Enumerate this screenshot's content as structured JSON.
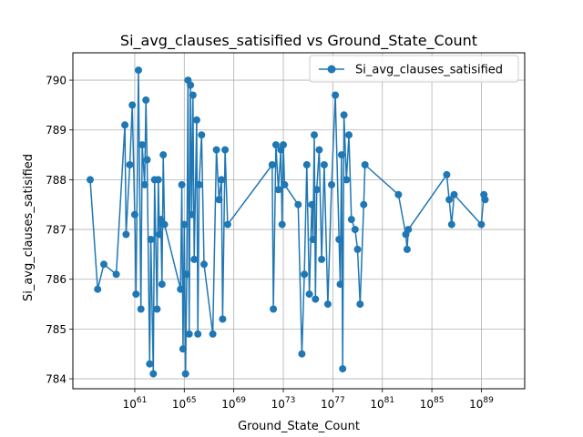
{
  "chart_data": {
    "type": "line",
    "title": "Si_avg_clauses_satisified vs Ground_State_Count",
    "xlabel": "Ground_State_Count",
    "ylabel": "Si_avg_clauses_satisified",
    "x_scale": "log10",
    "x_exponent_range": [
      56.0,
      92.5
    ],
    "xtick_exponents": [
      61,
      65,
      69,
      73,
      77,
      81,
      85,
      89
    ],
    "ylim": [
      783.8,
      790.55
    ],
    "yticks": [
      784,
      785,
      786,
      787,
      788,
      789,
      790
    ],
    "grid": true,
    "legend_position": "top-right",
    "color": "#1f77b4",
    "series": [
      {
        "name": "Si_avg_clauses_satisified",
        "x_exponent": [
          57.4,
          58.0,
          58.5,
          59.5,
          60.2,
          60.3,
          60.6,
          60.8,
          61.0,
          61.1,
          61.3,
          61.5,
          61.6,
          61.8,
          61.9,
          62.0,
          62.2,
          62.3,
          62.5,
          62.6,
          62.8,
          62.9,
          63.0,
          63.1,
          63.2,
          63.3,
          63.4,
          64.7,
          64.8,
          64.9,
          65.0,
          65.1,
          65.2,
          65.3,
          65.4,
          65.5,
          65.6,
          65.7,
          65.8,
          66.0,
          66.1,
          66.2,
          66.4,
          66.6,
          67.3,
          67.6,
          67.8,
          68.0,
          68.1,
          68.3,
          68.5,
          72.1,
          72.2,
          72.4,
          72.6,
          72.8,
          72.9,
          73.0,
          73.1,
          74.2,
          74.5,
          74.7,
          74.9,
          75.1,
          75.3,
          75.4,
          75.5,
          75.6,
          75.7,
          75.9,
          76.1,
          76.3,
          76.6,
          76.9,
          77.2,
          77.5,
          77.6,
          77.7,
          77.8,
          77.9,
          78.1,
          78.3,
          78.5,
          78.8,
          79.0,
          79.2,
          79.5,
          79.6,
          82.3,
          82.9,
          83.0,
          83.1,
          86.2,
          86.4,
          86.6,
          86.8,
          89.0,
          89.2,
          89.3
        ],
        "values": [
          788.0,
          785.8,
          786.3,
          786.1,
          789.1,
          786.9,
          788.3,
          789.5,
          787.3,
          785.7,
          790.2,
          785.4,
          788.7,
          787.9,
          789.6,
          788.4,
          784.3,
          786.8,
          784.1,
          788.0,
          785.4,
          788.0,
          786.9,
          787.2,
          785.9,
          788.5,
          787.1,
          785.8,
          787.9,
          784.6,
          787.1,
          784.1,
          786.1,
          790.0,
          784.9,
          789.9,
          787.3,
          789.7,
          786.4,
          789.2,
          784.9,
          787.9,
          788.9,
          786.3,
          784.9,
          788.6,
          787.6,
          788.0,
          785.2,
          788.6,
          787.1,
          788.3,
          785.4,
          788.7,
          787.8,
          788.6,
          787.1,
          788.7,
          787.9,
          787.5,
          784.5,
          786.1,
          788.3,
          785.7,
          787.5,
          786.8,
          788.9,
          785.6,
          787.8,
          788.6,
          786.4,
          788.3,
          785.5,
          787.9,
          789.7,
          786.8,
          785.9,
          788.5,
          784.2,
          789.3,
          788.0,
          788.9,
          787.2,
          787.0,
          786.6,
          785.5,
          787.5,
          788.3,
          787.7,
          786.9,
          786.6,
          787.0,
          788.1,
          787.6,
          787.1,
          787.7,
          787.1,
          787.7,
          787.6
        ]
      }
    ]
  }
}
